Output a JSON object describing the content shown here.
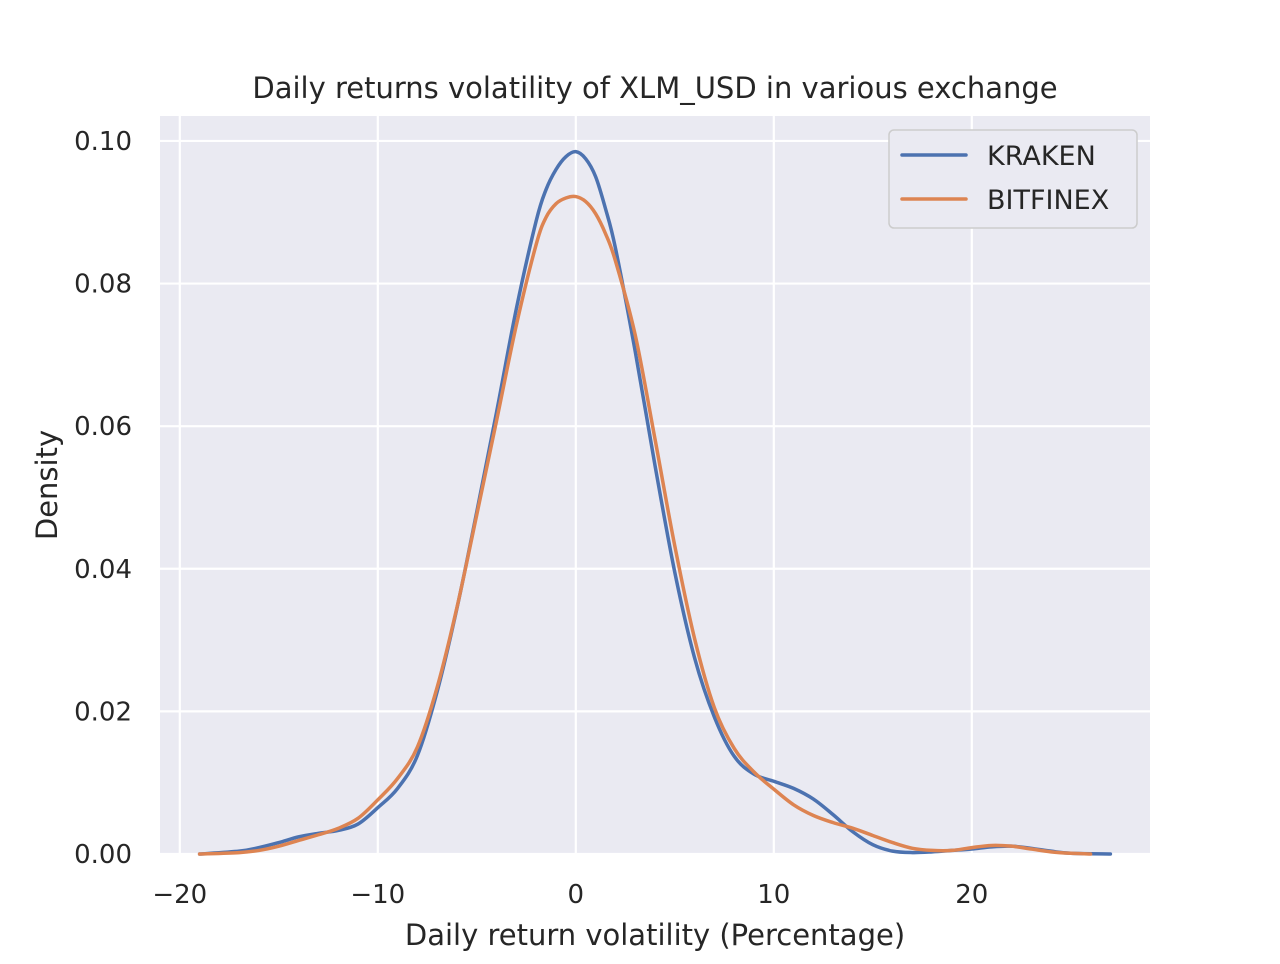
{
  "chart_data": {
    "type": "line",
    "title": "Daily returns volatility of XLM_USD in various exchange",
    "xlabel": "Daily return volatility (Percentage)",
    "ylabel": "Density",
    "xlim": [
      -21,
      29
    ],
    "ylim": [
      0,
      0.1035
    ],
    "x_ticks": [
      -20,
      -10,
      0,
      10,
      20
    ],
    "x_tick_labels": [
      "−20",
      "−10",
      "0",
      "10",
      "20"
    ],
    "y_ticks": [
      0,
      0.02,
      0.04,
      0.06,
      0.08,
      0.1
    ],
    "y_tick_labels": [
      "0.00",
      "0.02",
      "0.04",
      "0.06",
      "0.08",
      "0.10"
    ],
    "grid": true,
    "legend_position": "top-right",
    "series": [
      {
        "name": "KRAKEN",
        "color": "#4c72b0",
        "x": [
          -19,
          -17,
          -16,
          -15,
          -14,
          -13,
          -12,
          -11,
          -10,
          -9,
          -8,
          -7,
          -6,
          -5,
          -4,
          -3,
          -2,
          -1.5,
          -1,
          -0.5,
          0,
          0.5,
          1,
          1.5,
          2,
          3,
          4,
          5,
          6,
          7,
          8,
          9,
          10,
          11,
          12,
          13,
          14,
          15,
          16,
          17,
          18,
          19,
          20,
          21,
          22,
          23,
          24,
          25,
          27
        ],
        "y": [
          0,
          0.0004,
          0.0009,
          0.0016,
          0.0024,
          0.0029,
          0.0033,
          0.0042,
          0.0065,
          0.0092,
          0.0138,
          0.0228,
          0.0345,
          0.048,
          0.062,
          0.0765,
          0.0888,
          0.0932,
          0.096,
          0.0978,
          0.0985,
          0.0975,
          0.095,
          0.0905,
          0.085,
          0.0705,
          0.0545,
          0.0395,
          0.0275,
          0.0192,
          0.0137,
          0.0112,
          0.0102,
          0.0092,
          0.0077,
          0.0055,
          0.0031,
          0.0013,
          0.0004,
          0.0002,
          0.0003,
          0.0005,
          0.0007,
          0.001,
          0.0011,
          0.0008,
          0.0004,
          0.0001,
          0
        ]
      },
      {
        "name": "BITFINEX",
        "color": "#dd8452",
        "x": [
          -19,
          -17,
          -16,
          -15,
          -14,
          -13,
          -12,
          -11,
          -10,
          -9,
          -8,
          -7,
          -6,
          -5,
          -4,
          -3,
          -2,
          -1.5,
          -1,
          -0.5,
          0,
          0.5,
          1,
          1.5,
          2,
          3,
          4,
          5,
          6,
          7,
          8,
          9,
          10,
          11,
          12,
          13,
          14,
          15,
          16,
          17,
          18,
          19,
          20,
          21,
          22,
          23,
          24,
          25,
          26
        ],
        "y": [
          0,
          0.0002,
          0.0005,
          0.0011,
          0.0019,
          0.0027,
          0.0036,
          0.005,
          0.0076,
          0.0106,
          0.015,
          0.0234,
          0.0346,
          0.0476,
          0.0608,
          0.0742,
          0.0855,
          0.0893,
          0.0912,
          0.092,
          0.0922,
          0.0915,
          0.0898,
          0.087,
          0.0832,
          0.0728,
          0.0582,
          0.0432,
          0.0302,
          0.0205,
          0.0148,
          0.0115,
          0.0091,
          0.0069,
          0.0054,
          0.0044,
          0.0036,
          0.0026,
          0.0016,
          0.0008,
          0.0005,
          0.0005,
          0.0009,
          0.0012,
          0.0011,
          0.0007,
          0.0003,
          0.0001,
          0
        ]
      }
    ]
  }
}
